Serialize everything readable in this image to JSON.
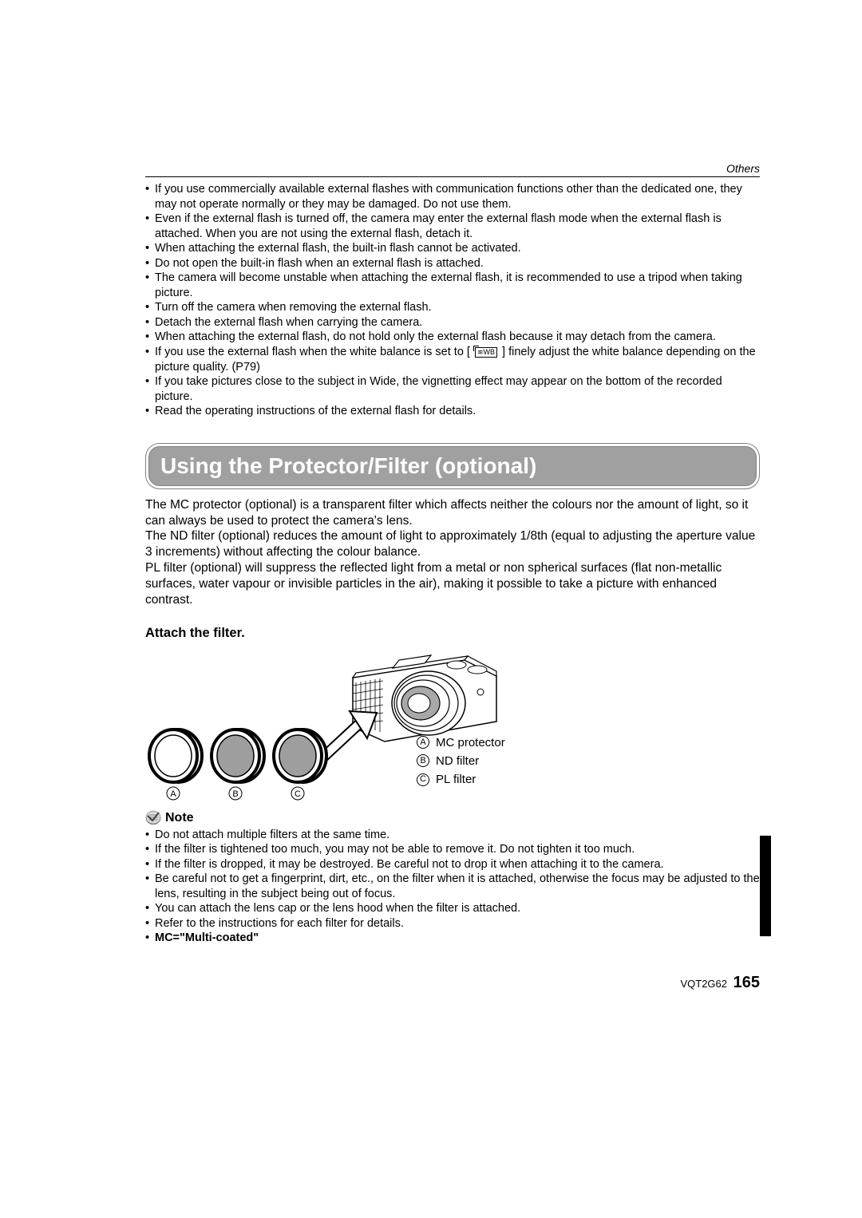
{
  "header": {
    "section": "Others"
  },
  "top_bullets": [
    "If you use commercially available external flashes with communication functions other than the dedicated one, they may not operate normally or they may be damaged. Do not use them.",
    "Even if the external flash is turned off, the camera may enter the external flash mode when the external flash is attached. When you are not using the external flash, detach it.",
    "When attaching the external flash, the built-in flash cannot be activated.",
    "Do not open the built-in flash when an external flash is attached.",
    "The camera will become unstable when attaching the external flash, it is recommended to use a tripod when taking picture.",
    "Turn off the camera when removing the external flash.",
    "Detach the external flash when carrying the camera.",
    "When attaching the external flash, do not hold only the external flash because it may detach from the camera.",
    "If you use the external flash when the white balance is set to [ ≋WB ] finely adjust the white balance depending on the picture quality. (P79)",
    "If you take pictures close to the subject in Wide, the vignetting effect may appear on the bottom of the recorded picture.",
    "Read the operating instructions of the external flash for details."
  ],
  "section_title": "Using the Protector/Filter (optional)",
  "body_paragraph": "The MC protector (optional) is a transparent filter which affects neither the colours nor the amount of light, so it can always be used to protect the camera's lens.\nThe ND filter (optional) reduces the amount of light to approximately 1/8th (equal to adjusting the aperture value 3 increments) without affecting the colour balance.\nPL filter (optional) will suppress the reflected light from a metal or non spherical surfaces (flat non-metallic surfaces, water vapour or invisible particles in the air), making it possible to take a picture with enhanced contrast.",
  "subhead": "Attach the filter.",
  "figure": {
    "filters": [
      {
        "letter": "A",
        "fill": "#ffffff"
      },
      {
        "letter": "B",
        "fill": "#9e9e9e"
      },
      {
        "letter": "C",
        "fill": "#9e9e9e"
      }
    ],
    "legend": [
      {
        "letter": "A",
        "label": "MC protector"
      },
      {
        "letter": "B",
        "label": "ND filter"
      },
      {
        "letter": "C",
        "label": "PL filter"
      }
    ],
    "colors": {
      "camera_body": "#ffffff",
      "camera_stroke": "#000000",
      "grip_hatch": "#000000",
      "arrow": "#000000",
      "lens_inner": "#a8a8a8"
    }
  },
  "note_label": "Note",
  "note_bullets": [
    {
      "text": "Do not attach multiple filters at the same time.",
      "bold": false
    },
    {
      "text": "If the filter is tightened too much, you may not be able to remove it. Do not tighten it too much.",
      "bold": false
    },
    {
      "text": "If the filter is dropped, it may be destroyed. Be careful not to drop it when attaching it to the camera.",
      "bold": false
    },
    {
      "text": "Be careful not to get a fingerprint, dirt, etc., on the filter when it is attached, otherwise the focus may be adjusted to the lens, resulting in the subject being out of focus.",
      "bold": false
    },
    {
      "text": "You can attach the lens cap or the lens hood when the filter is attached.",
      "bold": false
    },
    {
      "text": "Refer to the instructions for each filter for details.",
      "bold": false
    },
    {
      "text": "MC=\"Multi-coated\"",
      "bold": true
    }
  ],
  "footer": {
    "code": "VQT2G62",
    "page": "165"
  }
}
